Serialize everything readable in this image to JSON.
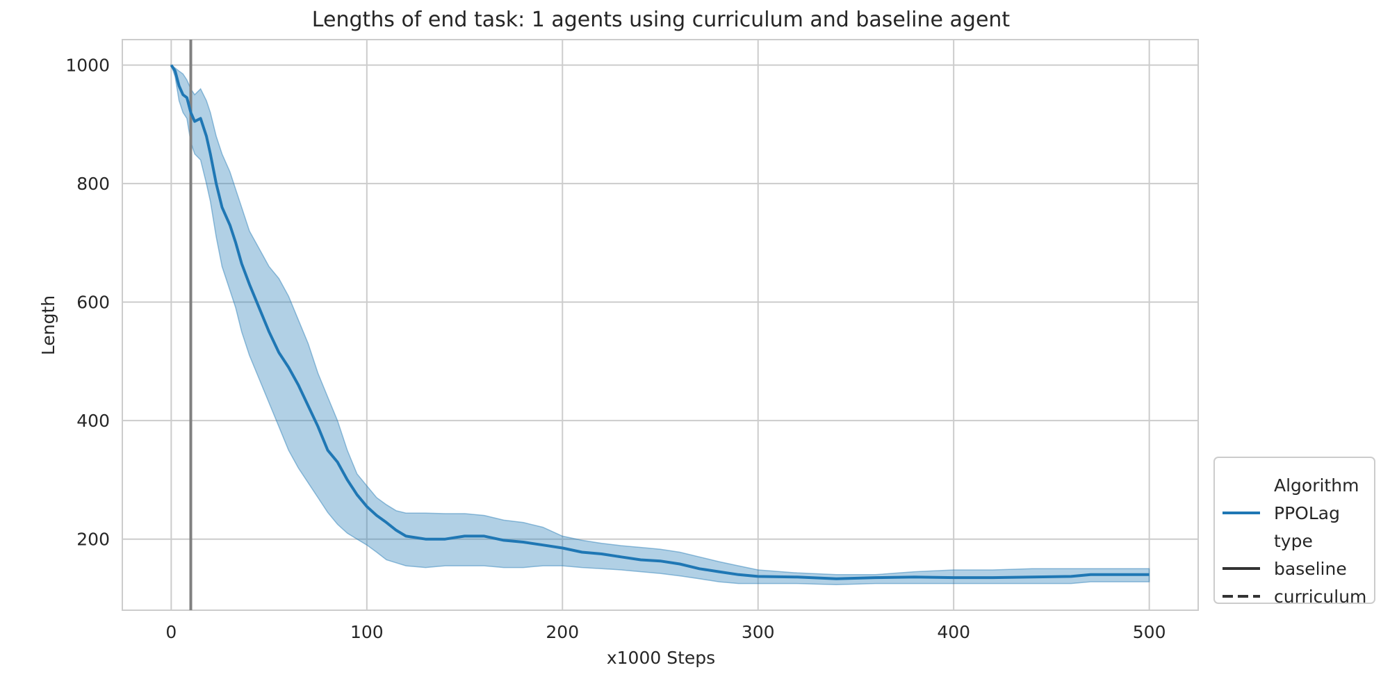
{
  "chart_data": {
    "type": "line",
    "title": "Lengths of end task: 1 agents using curriculum and baseline agent",
    "xlabel": "x1000 Steps",
    "ylabel": "Length",
    "xlim": [
      -25,
      525
    ],
    "ylim": [
      80,
      1043
    ],
    "xticks": [
      0,
      100,
      200,
      300,
      400,
      500
    ],
    "yticks": [
      200,
      400,
      600,
      800,
      1000
    ],
    "grid": true,
    "legend_position": "lower-right, outside plot area",
    "vertical_marker_x": 10,
    "colors": {
      "series": "#1f77b4",
      "band": "#1f77b4",
      "marker_line": "#808080",
      "grid": "#cccccc",
      "text": "#262626"
    },
    "series": [
      {
        "name": "PPOLag",
        "type": "baseline",
        "x": [
          0,
          2,
          4,
          6,
          8,
          10,
          12,
          15,
          18,
          20,
          23,
          26,
          30,
          33,
          36,
          40,
          45,
          50,
          55,
          60,
          65,
          70,
          75,
          80,
          85,
          90,
          95,
          100,
          105,
          110,
          115,
          120,
          130,
          140,
          150,
          160,
          170,
          180,
          190,
          200,
          210,
          220,
          230,
          240,
          250,
          260,
          270,
          280,
          290,
          300,
          320,
          340,
          360,
          380,
          400,
          420,
          440,
          460,
          470,
          480,
          490,
          500
        ],
        "y": [
          1000,
          990,
          965,
          950,
          945,
          920,
          905,
          910,
          880,
          850,
          800,
          760,
          730,
          700,
          665,
          630,
          590,
          550,
          515,
          490,
          460,
          425,
          390,
          350,
          330,
          300,
          275,
          255,
          240,
          228,
          215,
          205,
          200,
          200,
          205,
          205,
          198,
          195,
          190,
          185,
          178,
          175,
          170,
          165,
          163,
          158,
          150,
          145,
          140,
          137,
          136,
          133,
          135,
          136,
          135,
          135,
          136,
          137,
          140,
          140,
          140,
          140
        ],
        "upper": [
          1000,
          995,
          990,
          985,
          975,
          960,
          950,
          960,
          940,
          920,
          880,
          850,
          820,
          790,
          760,
          720,
          690,
          660,
          640,
          610,
          570,
          530,
          480,
          440,
          400,
          350,
          310,
          290,
          270,
          258,
          248,
          244,
          244,
          243,
          243,
          240,
          232,
          228,
          220,
          205,
          198,
          193,
          189,
          186,
          183,
          178,
          170,
          162,
          155,
          148,
          143,
          140,
          140,
          145,
          148,
          148,
          150,
          150,
          150,
          150,
          150,
          150
        ],
        "lower": [
          1000,
          980,
          940,
          920,
          910,
          870,
          850,
          840,
          800,
          770,
          710,
          660,
          620,
          590,
          550,
          510,
          470,
          430,
          390,
          350,
          320,
          295,
          270,
          245,
          225,
          210,
          200,
          190,
          178,
          165,
          160,
          155,
          152,
          155,
          155,
          155,
          152,
          152,
          155,
          155,
          152,
          150,
          148,
          145,
          142,
          138,
          133,
          128,
          125,
          125,
          125,
          123,
          125,
          125,
          125,
          125,
          125,
          125,
          128,
          128,
          128,
          128
        ]
      }
    ],
    "legend": {
      "entries": [
        {
          "label": "Algorithm",
          "marker": "none"
        },
        {
          "label": "PPOLag",
          "marker": "solid-blue"
        },
        {
          "label": "type",
          "marker": "none"
        },
        {
          "label": "baseline",
          "marker": "solid-dark"
        },
        {
          "label": "curriculum",
          "marker": "dashed-dark"
        }
      ]
    }
  }
}
